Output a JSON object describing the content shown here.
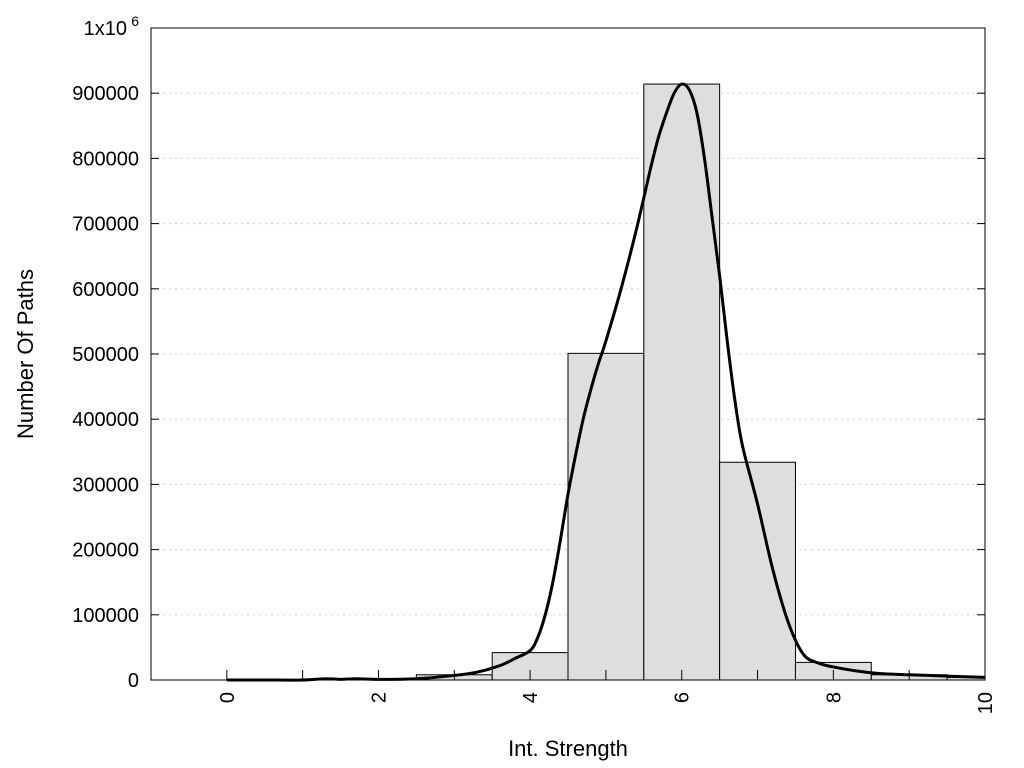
{
  "chart_data": {
    "type": "bar",
    "xlabel": "Int. Strength",
    "ylabel": "Number Of Paths",
    "xlim": [
      -1,
      10
    ],
    "ylim": [
      0,
      1000000
    ],
    "x_ticks": [
      0,
      2,
      4,
      6,
      8,
      10
    ],
    "x_tick_labels": [
      "0",
      "2",
      "4",
      "6",
      "8",
      "10"
    ],
    "y_ticks": [
      0,
      100000,
      200000,
      300000,
      400000,
      500000,
      600000,
      700000,
      800000,
      900000,
      1000000
    ],
    "y_tick_labels": [
      "0",
      "100000",
      "200000",
      "300000",
      "400000",
      "500000",
      "600000",
      "700000",
      "800000",
      "900000",
      "1x10"
    ],
    "y_top_exponent": "6",
    "grid": "horizontal dotted",
    "bars": {
      "categories": [
        0,
        1,
        2,
        3,
        4,
        5,
        6,
        7,
        8,
        9,
        10
      ],
      "width": 1,
      "values": [
        0,
        0,
        1000,
        8000,
        42000,
        501000,
        914000,
        334000,
        27000,
        8000,
        4000
      ]
    },
    "curve": {
      "x": [
        0,
        0.5,
        1,
        1.3,
        1.5,
        1.7,
        2,
        2.5,
        3,
        3.3,
        3.6,
        3.8,
        4,
        4.1,
        4.2,
        4.3,
        4.4,
        4.5,
        4.6,
        4.7,
        4.8,
        4.9,
        5,
        5.2,
        5.4,
        5.6,
        5.7,
        5.8,
        5.9,
        6,
        6.1,
        6.2,
        6.3,
        6.4,
        6.5,
        6.6,
        6.7,
        6.8,
        7,
        7.2,
        7.4,
        7.6,
        7.8,
        8,
        8.3,
        8.6,
        9,
        9.5,
        10
      ],
      "y": [
        0,
        0,
        0,
        2000,
        1000,
        2000,
        1000,
        2000,
        7000,
        12000,
        22000,
        33000,
        45000,
        65000,
        100000,
        150000,
        215000,
        285000,
        345000,
        400000,
        445000,
        485000,
        520000,
        600000,
        690000,
        790000,
        835000,
        870000,
        900000,
        914000,
        905000,
        870000,
        800000,
        710000,
        620000,
        520000,
        430000,
        360000,
        270000,
        170000,
        90000,
        40000,
        26000,
        20000,
        14000,
        10000,
        8000,
        6000,
        4000
      ]
    }
  }
}
